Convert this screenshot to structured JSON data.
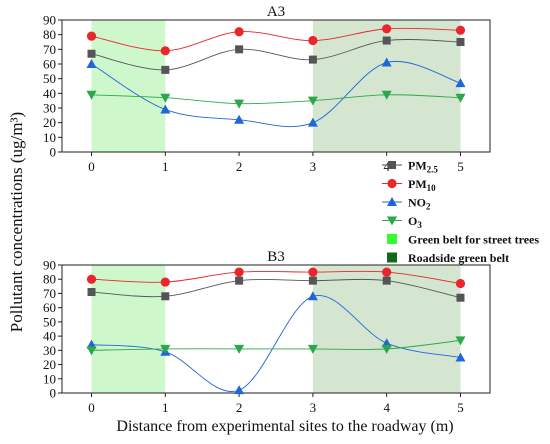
{
  "figure": {
    "ylabel": "Pollutant concentrations (ug/m³)",
    "xlabel": "Distance from experimental sites to the roadway (m)"
  },
  "colors": {
    "pm25": "#555555",
    "pm10": "#e8262c",
    "no2": "#1f66d8",
    "o3": "#2aa84a",
    "green_street": "#33ff33",
    "green_roadside": "#0d6b1a",
    "band_street": "#cff7cc",
    "band_roadside": "#d5e6d0"
  },
  "legend": {
    "items": [
      {
        "key": "pm25",
        "pre": "PM",
        "sub": "2.5",
        "marker": "square"
      },
      {
        "key": "pm10",
        "pre": "PM",
        "sub": "10",
        "marker": "circle"
      },
      {
        "key": "no2",
        "pre": "NO",
        "sub": "2",
        "marker": "triangle-up"
      },
      {
        "key": "o3",
        "pre": "O",
        "sub": "3",
        "marker": "triangle-down"
      },
      {
        "key": "green_street",
        "label": "Green belt for street trees",
        "marker": "box"
      },
      {
        "key": "green_roadside",
        "label": "Roadside green belt",
        "marker": "box"
      }
    ]
  },
  "chart_data": [
    {
      "type": "line",
      "title": "A3",
      "x": [
        0,
        1,
        2,
        3,
        4,
        5
      ],
      "xlim": [
        -0.4,
        5.4
      ],
      "ylim": [
        0,
        90
      ],
      "yticks": [
        0,
        10,
        20,
        30,
        40,
        50,
        60,
        70,
        80,
        90
      ],
      "bands": [
        {
          "from": 0,
          "to": 1,
          "color_key": "band_street"
        },
        {
          "from": 3,
          "to": 5,
          "color_key": "band_roadside"
        }
      ],
      "series": [
        {
          "key": "pm25",
          "values": [
            67,
            56,
            70,
            63,
            76,
            75
          ]
        },
        {
          "key": "pm10",
          "values": [
            79,
            69,
            82,
            76,
            84,
            83
          ]
        },
        {
          "key": "no2",
          "values": [
            60,
            29,
            22,
            20,
            61,
            47
          ]
        },
        {
          "key": "o3",
          "values": [
            39,
            37,
            33,
            35,
            39,
            37
          ]
        }
      ]
    },
    {
      "type": "line",
      "title": "B3",
      "x": [
        0,
        1,
        2,
        3,
        4,
        5
      ],
      "xlim": [
        -0.4,
        5.4
      ],
      "ylim": [
        0,
        90
      ],
      "yticks": [
        0,
        10,
        20,
        30,
        40,
        50,
        60,
        70,
        80,
        90
      ],
      "bands": [
        {
          "from": 0,
          "to": 1,
          "color_key": "band_street"
        },
        {
          "from": 3,
          "to": 5,
          "color_key": "band_roadside"
        }
      ],
      "series": [
        {
          "key": "pm25",
          "values": [
            71,
            68,
            79,
            79,
            79,
            67
          ]
        },
        {
          "key": "pm10",
          "values": [
            80,
            78,
            85,
            85,
            85,
            77
          ]
        },
        {
          "key": "no2",
          "values": [
            34,
            29,
            2,
            68,
            35,
            25
          ]
        },
        {
          "key": "o3",
          "values": [
            30,
            31,
            31,
            31,
            31,
            37
          ]
        }
      ]
    }
  ]
}
